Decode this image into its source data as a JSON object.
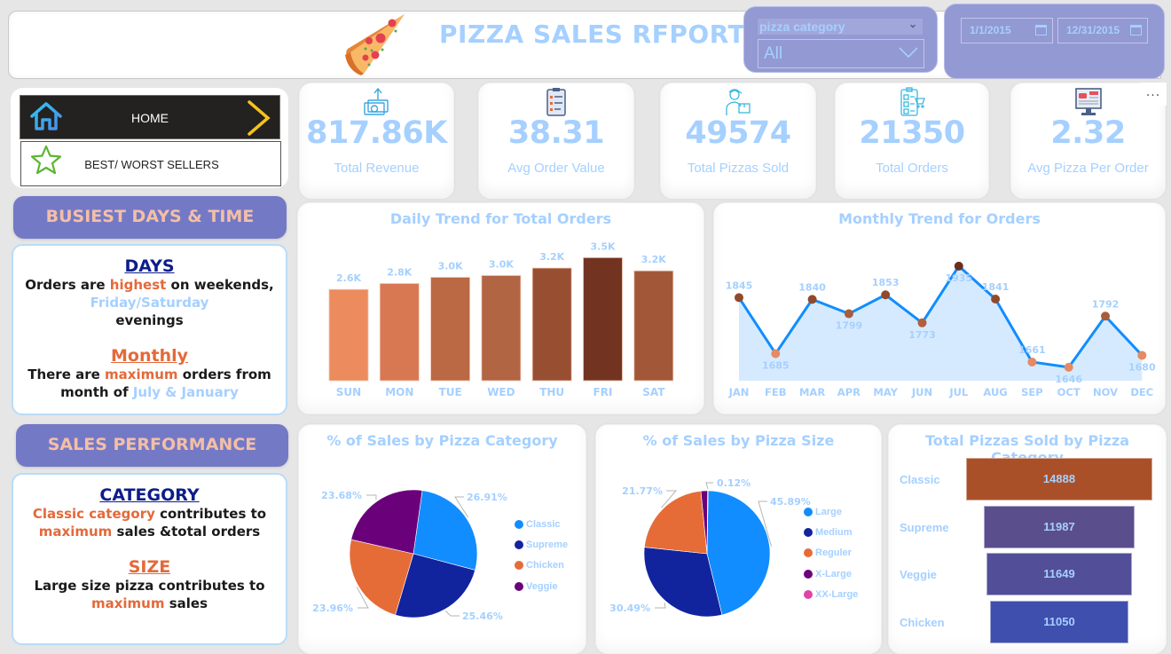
{
  "header": {
    "title": "PIZZA SALES RFPORT",
    "logo_icon": "pizza-slice-icon"
  },
  "filters": {
    "category": {
      "label": "pizza category",
      "selected": "All"
    },
    "date_range": {
      "start": "1/1/2015",
      "end": "12/31/2015"
    }
  },
  "nav": {
    "home": {
      "label": "HOME",
      "icon": "home-icon",
      "arrow_icon": "chevron-right-icon"
    },
    "best_worst": {
      "label": "BEST/ WORST SELLERS",
      "icon": "star-icon"
    }
  },
  "insights": {
    "busiest": {
      "title": "BUSIEST DAYS & TIME",
      "days_heading": "DAYS",
      "days_text": [
        "Orders are ",
        "highest",
        " on weekends, ",
        "Friday/Saturday",
        " evenings"
      ],
      "monthly_heading": "Monthly",
      "monthly_text": [
        "There are ",
        "maximum",
        " orders from month of ",
        "July & January"
      ]
    },
    "sales": {
      "title": "SALES PERFORMANCE",
      "category_heading": "CATEGORY",
      "category_text": [
        "Classic category",
        " contributes to ",
        "maximum",
        " sales &total orders"
      ],
      "size_heading": "SIZE",
      "size_text": [
        "Large size pizza contributes to ",
        "maximum",
        " sales"
      ]
    }
  },
  "kpis": [
    {
      "value": "817.86K",
      "label": "Total Revenue",
      "icon": "money-up-icon"
    },
    {
      "value": "38.31",
      "label": "Avg Order Value",
      "icon": "clipboard-icon"
    },
    {
      "value": "49574",
      "label": "Total Pizzas Sold",
      "icon": "delivery-person-icon"
    },
    {
      "value": "21350",
      "label": "Total Orders",
      "icon": "order-checklist-icon"
    },
    {
      "value": "2.32",
      "label": "Avg Pizza Per Order",
      "icon": "monitor-car-icon"
    }
  ],
  "more_options": "...",
  "chart_data": [
    {
      "type": "bar",
      "title": "Daily Trend for Total Orders",
      "categories": [
        "SUN",
        "MON",
        "TUE",
        "WED",
        "THU",
        "FRI",
        "SAT"
      ],
      "values": [
        2624,
        2794,
        2973,
        3024,
        3239,
        3538,
        3158
      ],
      "data_labels": [
        "2.6K",
        "2.8K",
        "3.0K",
        "3.0K",
        "3.2K",
        "3.5K",
        "3.2K"
      ],
      "colors": [
        "#ec8b5e",
        "#d87852",
        "#bb6844",
        "#b26543",
        "#984f31",
        "#723420",
        "#a25838"
      ],
      "xlabel": "",
      "ylabel": "",
      "ylim": [
        0,
        3700
      ],
      "grid": false
    },
    {
      "type": "area",
      "title": "Monthly Trend for Orders",
      "categories": [
        "JAN",
        "FEB",
        "MAR",
        "APR",
        "MAY",
        "JUN",
        "JUL",
        "AUG",
        "SEP",
        "OCT",
        "NOV",
        "DEC"
      ],
      "values": [
        1845,
        1685,
        1840,
        1799,
        1853,
        1773,
        1935,
        1841,
        1661,
        1646,
        1792,
        1680
      ],
      "line_color": "#118dff",
      "fill_color": "#d6eaff",
      "marker_colors": [
        "#8f4a2c",
        "#e58a62",
        "#8f4a2c",
        "#a75c3b",
        "#8f4a2c",
        "#b0603d",
        "#6b301c",
        "#8f4a2c",
        "#e58a62",
        "#e58a62",
        "#a75c3b",
        "#e58a62"
      ],
      "ylim": [
        1600,
        1950
      ],
      "grid": false
    },
    {
      "type": "pie",
      "title": "% of Sales by Pizza Category",
      "labels": [
        "Classic",
        "Supreme",
        "Chicken",
        "Veggie"
      ],
      "values": [
        26.91,
        25.46,
        23.96,
        23.68
      ],
      "value_labels": [
        "26.91%",
        "25.46%",
        "23.96%",
        "23.68%"
      ],
      "colors": [
        "#118dff",
        "#12239e",
        "#e66c37",
        "#6b007b"
      ],
      "legend": "right"
    },
    {
      "type": "pie",
      "title": "% of Sales by Pizza Size",
      "labels": [
        "Large",
        "Medium",
        "Reguler",
        "X-Large",
        "XX-Large"
      ],
      "values": [
        45.89,
        30.49,
        21.77,
        1.72,
        0.12
      ],
      "value_labels": [
        "45.89%",
        "30.49%",
        "21.77%",
        "",
        "0.12%"
      ],
      "colors": [
        "#118dff",
        "#12239e",
        "#e66c37",
        "#6b007b",
        "#e044a7"
      ],
      "legend": "right"
    },
    {
      "type": "bar",
      "subtype": "funnel",
      "title": "Total Pizzas Sold by Pizza Category",
      "categories": [
        "Classic",
        "Supreme",
        "Veggie",
        "Chicken"
      ],
      "values": [
        14888,
        11987,
        11649,
        11050
      ],
      "colors": [
        "#a95029",
        "#5b4e8d",
        "#524e97",
        "#3f4fad"
      ]
    }
  ]
}
